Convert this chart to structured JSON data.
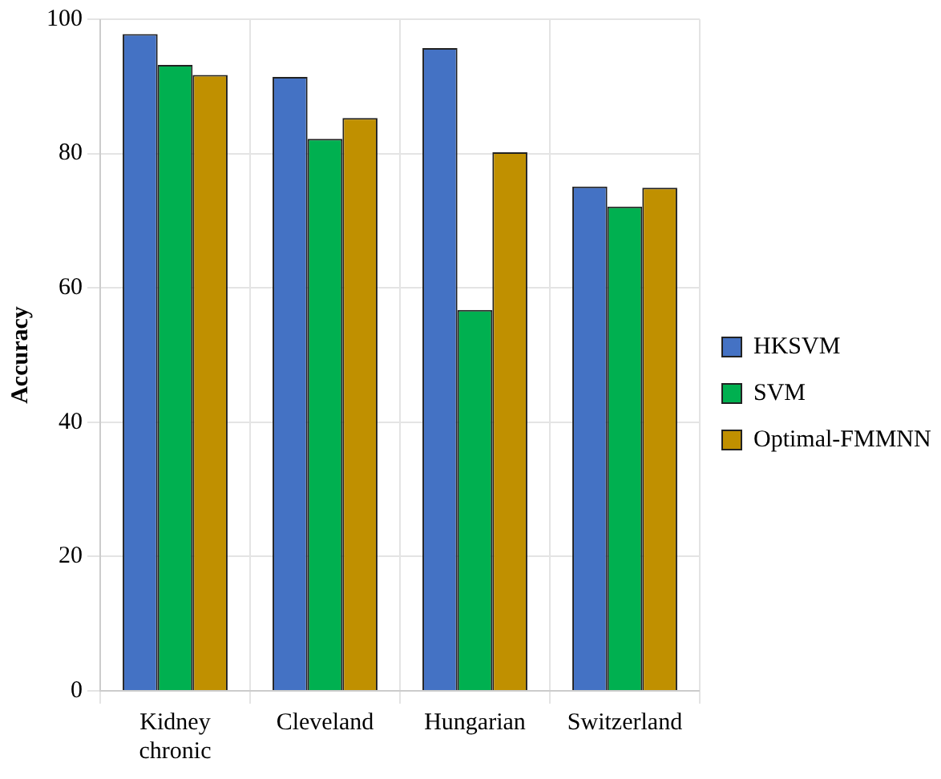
{
  "chart_data": {
    "type": "bar",
    "ylabel": "Accuracy",
    "categories": [
      "Kidney chronic",
      "Cleveland",
      "Hungarian",
      "Switzerland"
    ],
    "series": [
      {
        "name": "HKSVM",
        "color": "#4472c4",
        "values": [
          97.8,
          91.4,
          95.7,
          75.1
        ]
      },
      {
        "name": "SVM",
        "color": "#00b050",
        "values": [
          93.2,
          82.2,
          56.7,
          72.1
        ]
      },
      {
        "name": "Optimal-FMMNN",
        "color": "#c09000",
        "values": [
          91.7,
          85.3,
          80.2,
          74.9
        ]
      }
    ],
    "ylim": [
      0,
      100
    ],
    "yticks": [
      0,
      20,
      40,
      60,
      80,
      100
    ],
    "grid": true,
    "legend": "right"
  }
}
